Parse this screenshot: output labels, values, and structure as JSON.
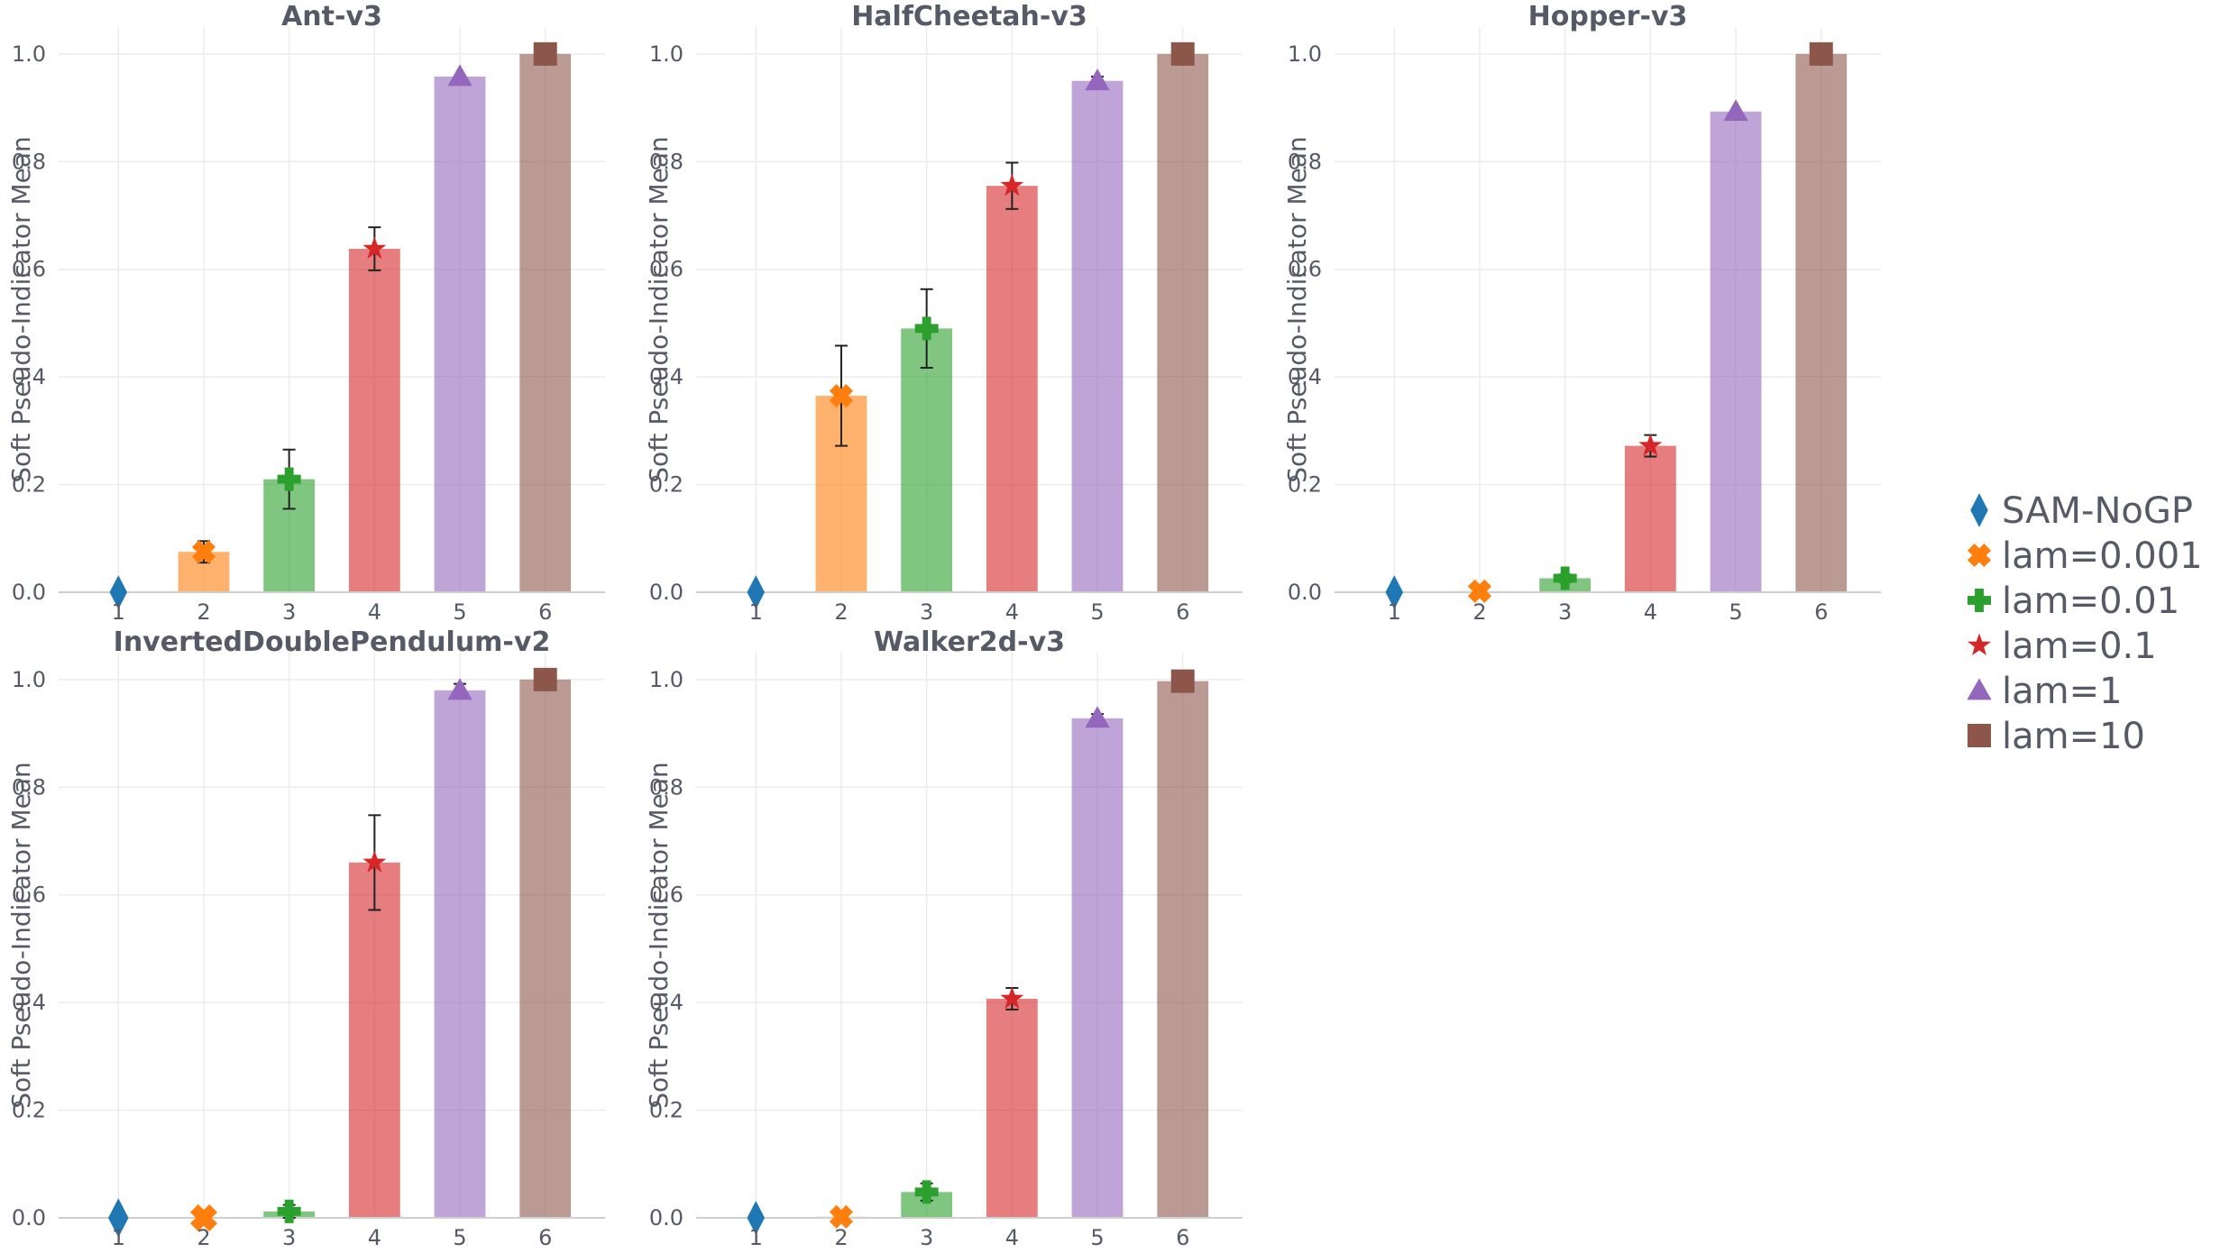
{
  "chart_data": {
    "type": "bar",
    "ylabel": "Soft Pseudo-Indicator Mean",
    "ylim": [
      0,
      1.05
    ],
    "yticks": [
      "0.0",
      "0.2",
      "0.4",
      "0.6",
      "0.8",
      "1.0"
    ],
    "categories": [
      "1",
      "2",
      "3",
      "4",
      "5",
      "6"
    ],
    "series": [
      {
        "name": "SAM-NoGP",
        "color": "#1f77b4",
        "marker": "diamond"
      },
      {
        "name": "lam=0.001",
        "color": "#ff7f0e",
        "marker": "x"
      },
      {
        "name": "lam=0.01",
        "color": "#2ca02c",
        "marker": "plus"
      },
      {
        "name": "lam=0.1",
        "color": "#d62728",
        "marker": "star"
      },
      {
        "name": "lam=1",
        "color": "#9467bd",
        "marker": "triangle"
      },
      {
        "name": "lam=10",
        "color": "#8c564b",
        "marker": "square"
      }
    ],
    "panels": [
      {
        "title": "Ant-v3",
        "values": [
          0.0,
          0.075,
          0.21,
          0.638,
          0.958,
          1.0
        ],
        "errors": [
          0.0,
          0.02,
          0.055,
          0.04,
          0.0,
          0.0
        ]
      },
      {
        "title": "HalfCheetah-v3",
        "values": [
          0.0,
          0.365,
          0.49,
          0.755,
          0.95,
          1.0
        ],
        "errors": [
          0.0,
          0.093,
          0.073,
          0.043,
          0.008,
          0.0
        ]
      },
      {
        "title": "Hopper-v3",
        "values": [
          0.0,
          0.002,
          0.026,
          0.272,
          0.893,
          1.0
        ],
        "errors": [
          0.0,
          0.0,
          0.007,
          0.02,
          0.0,
          0.0
        ]
      },
      {
        "title": "InvertedDoublePendulum-v2",
        "values": [
          0.0,
          0.0,
          0.012,
          0.66,
          0.98,
          1.0
        ],
        "errors": [
          0.0,
          0.0,
          0.012,
          0.088,
          0.012,
          0.0
        ]
      },
      {
        "title": "Walker2d-v3",
        "values": [
          0.0,
          0.002,
          0.048,
          0.407,
          0.928,
          0.997
        ],
        "errors": [
          0.0,
          0.0,
          0.016,
          0.02,
          0.008,
          0.0
        ]
      }
    ]
  }
}
